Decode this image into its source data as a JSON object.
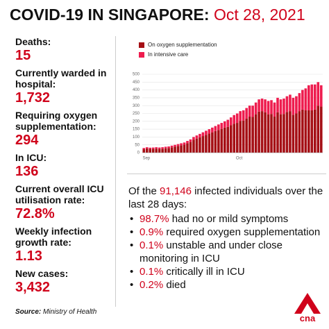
{
  "header": {
    "title": "COVID-19 IN SINGAPORE:",
    "date": "Oct 28, 2021"
  },
  "stats": [
    {
      "label": "Deaths:",
      "value": "15"
    },
    {
      "label": "Currently warded in hospital:",
      "value": "1,732"
    },
    {
      "label": "Requiring oxygen supplementation:",
      "value": "294"
    },
    {
      "label": "In ICU:",
      "value": "136"
    },
    {
      "label": "Current overall ICU utilisation rate:",
      "value": "72.8%"
    },
    {
      "label": "Weekly infection growth rate:",
      "value": "1.13"
    },
    {
      "label": "New cases:",
      "value": "3,432"
    }
  ],
  "source": {
    "label": "Source:",
    "text": "Ministry of Health"
  },
  "summary": {
    "before": "Of the",
    "number": "91,146",
    "after": "infected individuals over the last 28 days:",
    "bullets": [
      {
        "pct": "98.7%",
        "text": "had no or mild symptoms"
      },
      {
        "pct": "0.9%",
        "text": "required oxygen supplementation"
      },
      {
        "pct": "0.1%",
        "text": "unstable and under close monitoring in ICU"
      },
      {
        "pct": "0.1%",
        "text": "critically ill in ICU"
      },
      {
        "pct": "0.2%",
        "text": "died"
      }
    ]
  },
  "logo": {
    "text": "cna"
  },
  "chart_data": {
    "type": "stacked-bar",
    "categories": [
      "Sep",
      null,
      null,
      null,
      null,
      null,
      null,
      null,
      null,
      null,
      null,
      null,
      null,
      null,
      null,
      null,
      null,
      null,
      null,
      null,
      null,
      null,
      null,
      null,
      null,
      null,
      null,
      null,
      null,
      null,
      "Oct",
      null,
      null,
      null,
      null,
      null,
      null,
      null,
      null,
      null,
      null,
      null,
      null,
      null,
      null,
      null,
      null,
      null,
      null,
      null,
      null,
      null,
      null,
      null,
      null,
      null,
      null,
      null
    ],
    "series": [
      {
        "name": "On oxygen supplementation",
        "color": "#a50f15",
        "values": [
          22,
          27,
          24,
          24,
          26,
          24,
          25,
          28,
          30,
          34,
          39,
          43,
          47,
          51,
          60,
          69,
          82,
          90,
          98,
          106,
          114,
          122,
          130,
          138,
          145,
          152,
          160,
          165,
          175,
          185,
          190,
          203,
          205,
          217,
          230,
          228,
          245,
          262,
          265,
          258,
          245,
          247,
          230,
          258,
          245,
          247,
          260,
          265,
          242,
          250,
          265,
          275,
          270,
          270,
          270,
          275,
          300,
          294
        ]
      },
      {
        "name": "In intensive care",
        "color": "#ee1c4e",
        "values": [
          8,
          8,
          8,
          9,
          9,
          9,
          10,
          10,
          10,
          11,
          11,
          12,
          13,
          14,
          15,
          16,
          18,
          20,
          22,
          24,
          26,
          28,
          30,
          32,
          35,
          38,
          40,
          45,
          50,
          55,
          60,
          62,
          65,
          68,
          70,
          72,
          75,
          78,
          80,
          82,
          85,
          88,
          90,
          92,
          95,
          98,
          100,
          105,
          108,
          110,
          115,
          125,
          140,
          160,
          165,
          160,
          150,
          136
        ]
      }
    ],
    "ylim": [
      0,
      500
    ],
    "yticks": [
      0,
      50,
      100,
      150,
      200,
      250,
      300,
      350,
      400,
      450,
      500
    ],
    "grid": true
  }
}
